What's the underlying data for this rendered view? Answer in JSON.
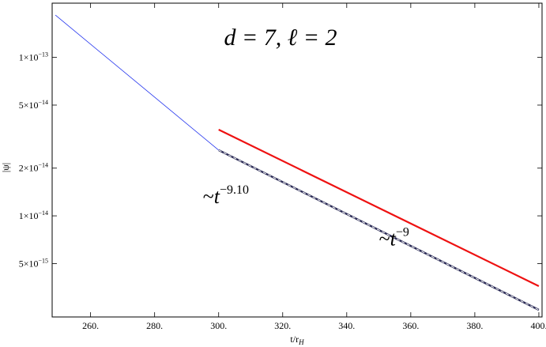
{
  "chart_data": {
    "type": "line",
    "title": "d = 7,  ℓ = 2",
    "xlabel": "t/r_H",
    "ylabel": "|ψ|",
    "xlim": [
      248,
      401
    ],
    "ylog": true,
    "ylim": [
      2.3e-15,
      2.2e-13
    ],
    "grid": false,
    "x_ticks": [
      {
        "value": 260,
        "label": "260."
      },
      {
        "value": 280,
        "label": "280."
      },
      {
        "value": 300,
        "label": "300."
      },
      {
        "value": 320,
        "label": "320."
      },
      {
        "value": 340,
        "label": "340."
      },
      {
        "value": 360,
        "label": "360."
      },
      {
        "value": 380,
        "label": "380."
      },
      {
        "value": 400,
        "label": "400."
      }
    ],
    "y_ticks": [
      {
        "value": 1e-13,
        "label_mantissa": "1×10",
        "label_exp": "−13"
      },
      {
        "value": 5e-14,
        "label_mantissa": "5×10",
        "label_exp": "−14"
      },
      {
        "value": 2e-14,
        "label_mantissa": "2×10",
        "label_exp": "−14"
      },
      {
        "value": 1e-14,
        "label_mantissa": "1×10",
        "label_exp": "−14"
      },
      {
        "value": 5e-15,
        "label_mantissa": "5×10",
        "label_exp": "−15"
      }
    ],
    "series": [
      {
        "color": "#2233ee",
        "width": 0.8,
        "dash": "",
        "x": [
          249,
          300
        ],
        "y": [
          1.85e-13,
          2.6e-14
        ]
      },
      {
        "color": "#ee1111",
        "width": 2.2,
        "dash": "",
        "x": [
          300,
          400
        ],
        "y": [
          3.5e-14,
          3.6e-15
        ]
      },
      {
        "color": "#2a2a55",
        "width": 2.4,
        "dash": "",
        "x": [
          300,
          400
        ],
        "y": [
          2.6e-14,
          2.55e-15
        ]
      },
      {
        "color": "#ffffff",
        "width": 1.0,
        "dash": "4,3",
        "x": [
          300,
          400
        ],
        "y": [
          2.6e-14,
          2.55e-15
        ]
      }
    ],
    "annotations": [
      {
        "id": "fit",
        "tilde": "~",
        "base": "t",
        "exp": "−9.10",
        "x": 300,
        "y": 1.2e-14
      },
      {
        "id": "ref",
        "tilde": "~",
        "base": "t",
        "exp": "−9",
        "x": 355,
        "y": 6.5e-15
      }
    ]
  }
}
